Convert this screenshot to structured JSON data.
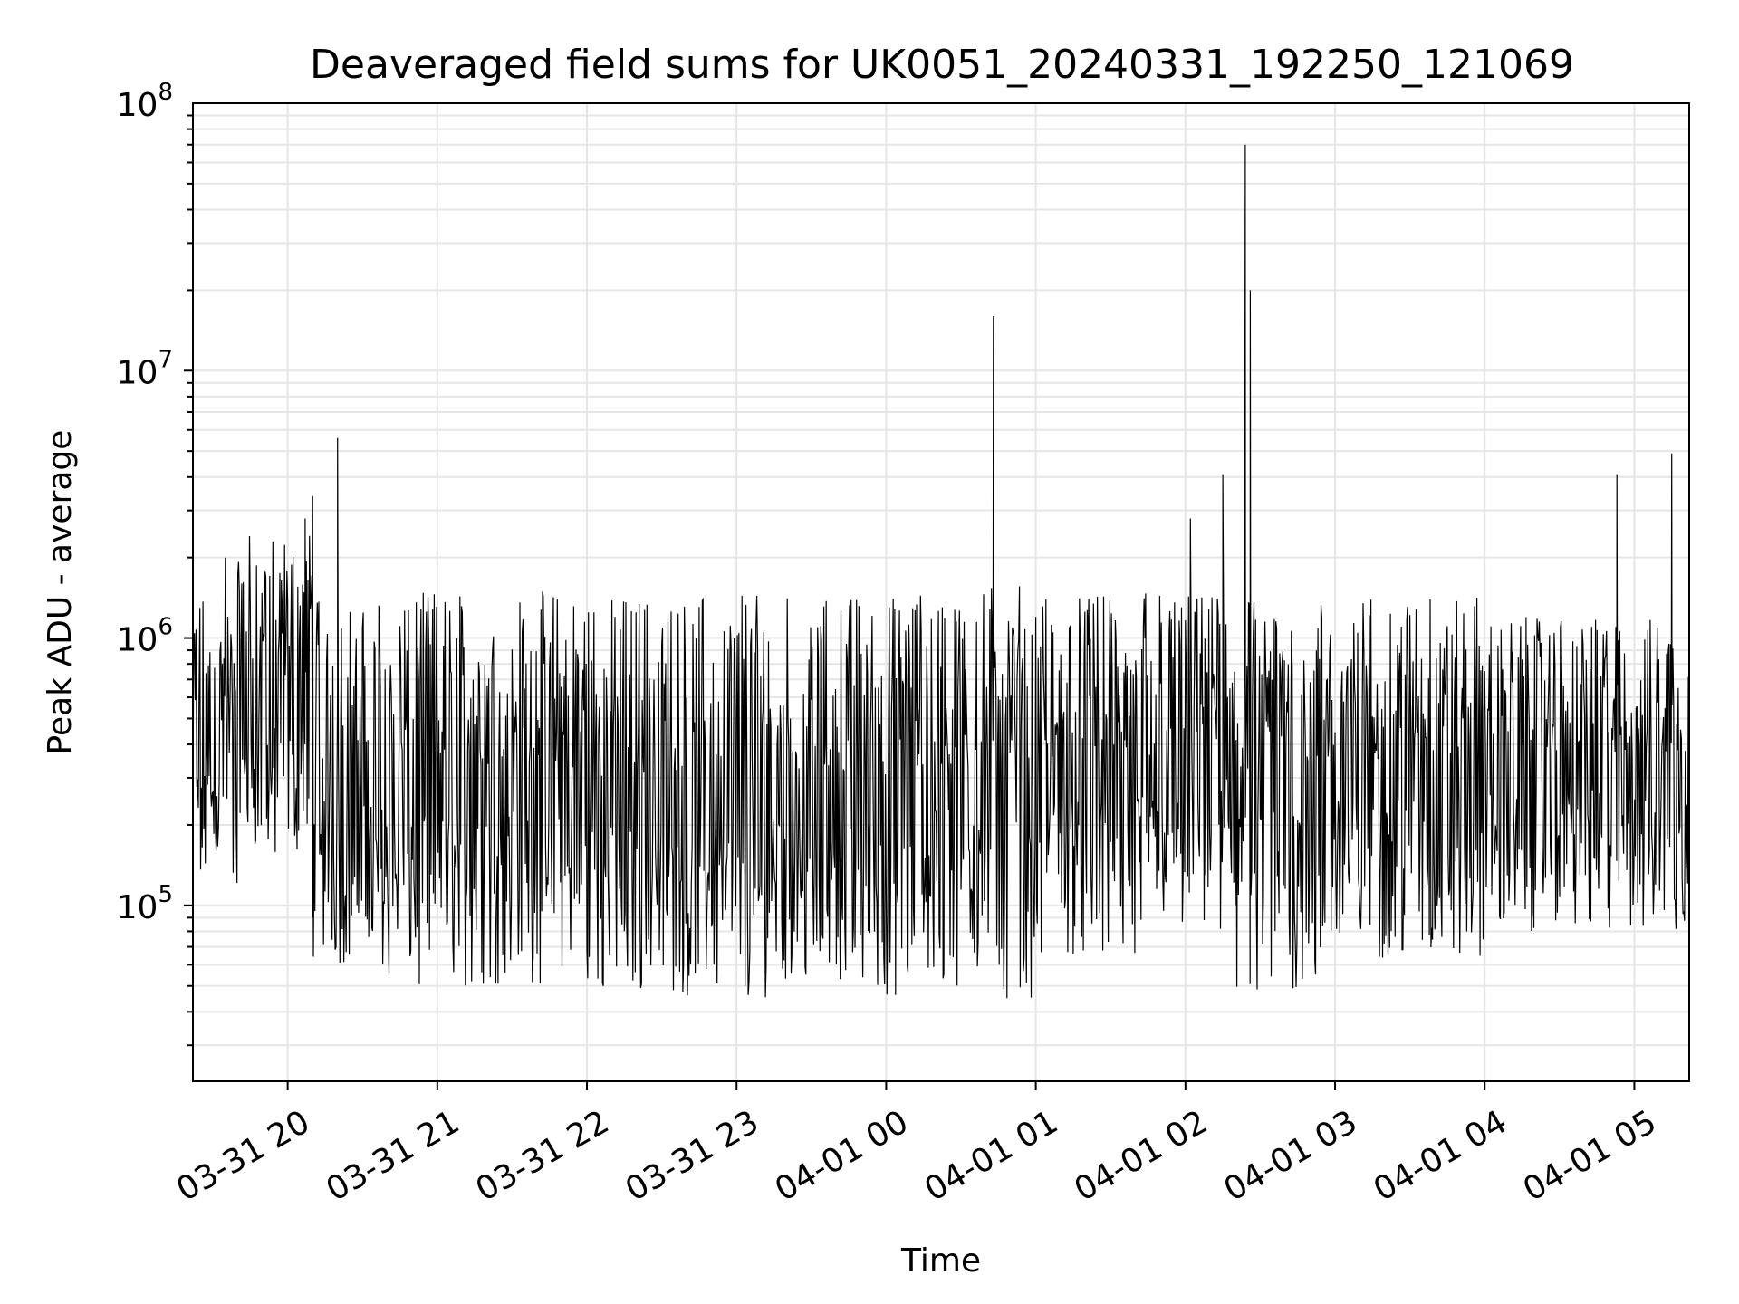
{
  "chart_data": {
    "type": "line",
    "title": "Deaveraged field sums for UK0051_20240331_192250_121069",
    "xlabel": "Time",
    "ylabel": "Peak ADU - average",
    "yscale": "log",
    "ylim": [
      22000,
      100000000
    ],
    "xlim": [
      "03-31 19:22",
      "04-01 05:22"
    ],
    "grid": true,
    "x_ticks": [
      "03-31 20",
      "03-31 21",
      "03-31 22",
      "03-31 23",
      "04-01 00",
      "04-01 01",
      "04-01 02",
      "04-01 03",
      "04-01 04",
      "04-01 05"
    ],
    "y_ticks": [
      {
        "base": "10",
        "exp": "5"
      },
      {
        "base": "10",
        "exp": "6"
      },
      {
        "base": "10",
        "exp": "7"
      },
      {
        "base": "10",
        "exp": "8"
      }
    ],
    "line_color": "#000000",
    "grid_color": "#e6e6e6",
    "series": [
      {
        "segments": [
          {
            "start": "03-31 19:22",
            "end": "03-31 19:40",
            "low": 120000,
            "high": 1500000
          },
          {
            "start": "03-31 19:40",
            "end": "03-31 20:10",
            "low": 150000,
            "high": 2500000
          },
          {
            "start": "03-31 20:10",
            "end": "03-31 20:40",
            "low": 60000,
            "high": 1400000
          },
          {
            "start": "03-31 20:40",
            "end": "03-31 22:00",
            "low": 50000,
            "high": 1500000
          },
          {
            "start": "03-31 22:00",
            "end": "04-01 00:10",
            "low": 45000,
            "high": 1450000
          },
          {
            "start": "04-01 00:10",
            "end": "04-01 00:40",
            "low": 50000,
            "high": 1500000
          },
          {
            "start": "04-01 00:40",
            "end": "04-01 01:00",
            "low": 45000,
            "high": 1600000
          },
          {
            "start": "04-01 01:00",
            "end": "04-01 01:50",
            "low": 60000,
            "high": 1500000
          },
          {
            "start": "04-01 01:50",
            "end": "04-01 02:20",
            "low": 80000,
            "high": 1500000
          },
          {
            "start": "04-01 02:20",
            "end": "04-01 03:00",
            "low": 48000,
            "high": 1450000
          },
          {
            "start": "04-01 03:00",
            "end": "04-01 04:00",
            "low": 60000,
            "high": 1500000
          },
          {
            "start": "04-01 04:00",
            "end": "04-01 05:22",
            "low": 80000,
            "high": 1200000
          }
        ],
        "spikes": [
          {
            "x": "03-31 19:35",
            "y": 2000000
          },
          {
            "x": "03-31 20:07",
            "y": 2800000
          },
          {
            "x": "03-31 20:10",
            "y": 3400000
          },
          {
            "x": "03-31 20:20",
            "y": 5600000
          },
          {
            "x": "04-01 00:43",
            "y": 16000000
          },
          {
            "x": "04-01 02:02",
            "y": 2800000
          },
          {
            "x": "04-01 02:15",
            "y": 4100000
          },
          {
            "x": "04-01 02:24",
            "y": 70000000
          },
          {
            "x": "04-01 02:26",
            "y": 20000000
          },
          {
            "x": "04-01 04:53",
            "y": 4100000
          },
          {
            "x": "04-01 05:15",
            "y": 4900000
          }
        ]
      }
    ]
  }
}
